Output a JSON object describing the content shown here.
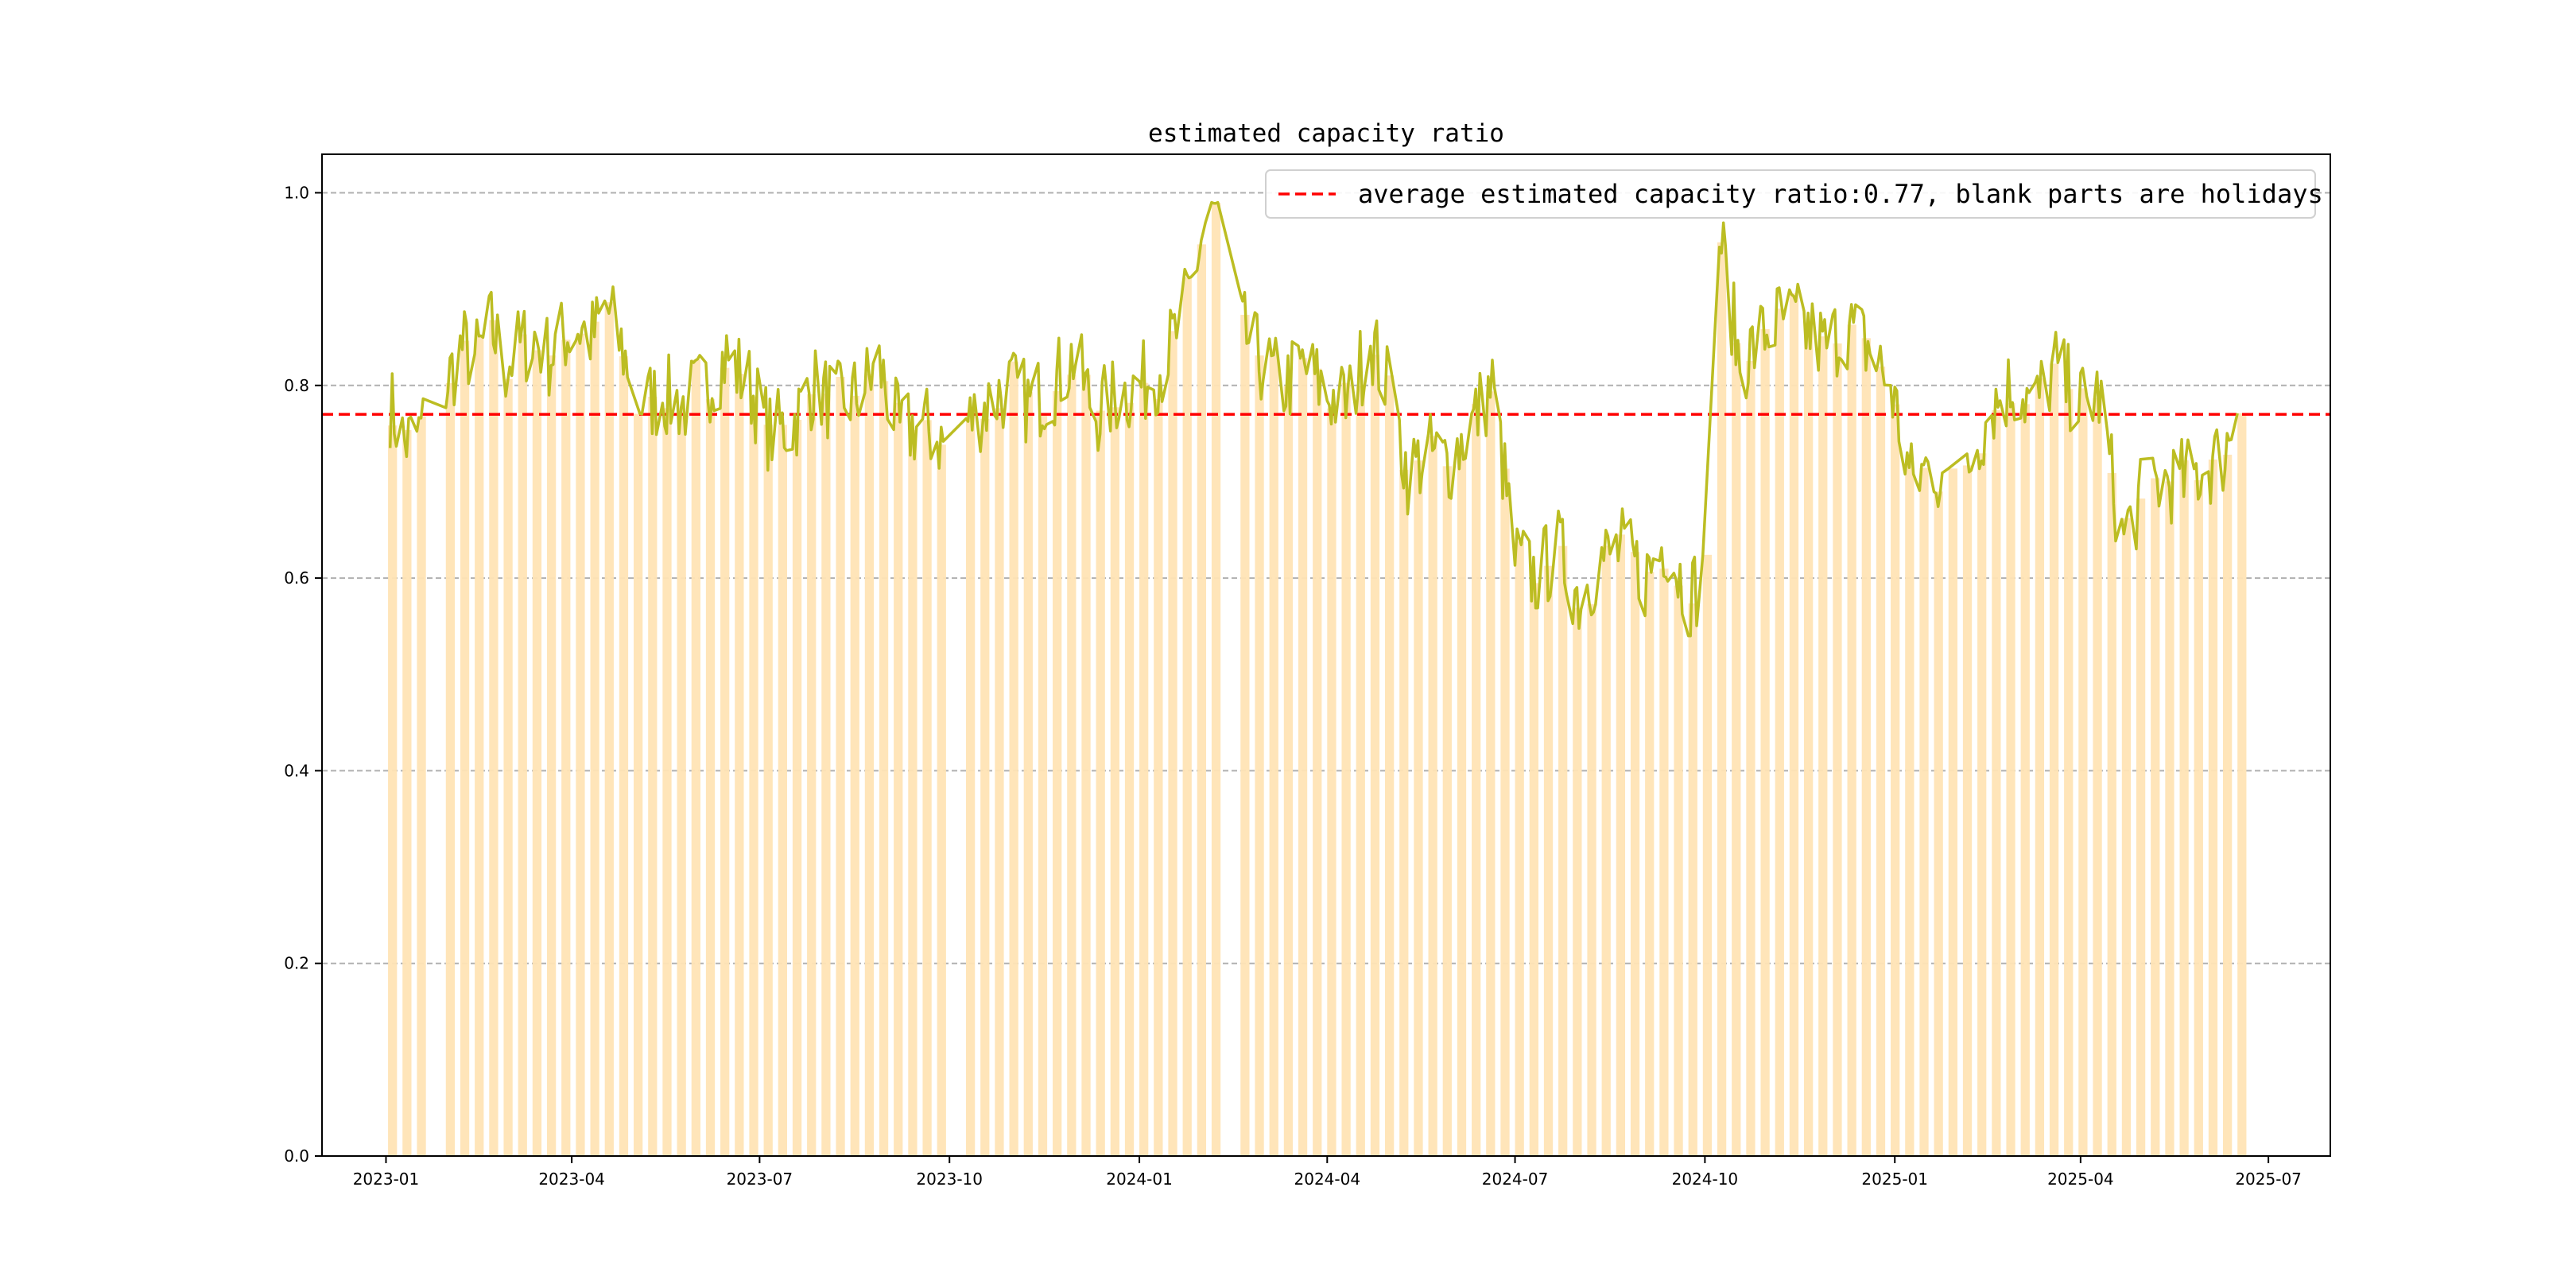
{
  "chart_data": {
    "type": "bar+line",
    "title": "estimated capacity ratio",
    "xlabel": "",
    "ylabel": "",
    "ylim": [
      0,
      1.04
    ],
    "xlim": [
      "2022-12-01",
      "2025-07-31"
    ],
    "grid": "y-dashed",
    "legend_placement": "top-right",
    "legend_entries": [
      "average estimated capacity ratio:0.77, blank parts are holidays"
    ],
    "average": 0.77,
    "x_ticks": [
      "2023-01",
      "2023-04",
      "2023-07",
      "2023-10",
      "2024-01",
      "2024-04",
      "2024-07",
      "2024-10",
      "2025-01",
      "2025-04",
      "2025-07"
    ],
    "y_ticks": [
      "0.0",
      "0.2",
      "0.4",
      "0.6",
      "0.8",
      "1.0"
    ],
    "holidays": [
      [
        "2023-01-20",
        "2023-01-28"
      ],
      [
        "2023-04-29",
        "2023-05-03"
      ],
      [
        "2023-09-29",
        "2023-10-06"
      ],
      [
        "2024-02-09",
        "2024-02-18"
      ],
      [
        "2024-05-01",
        "2024-05-05"
      ],
      [
        "2024-10-01",
        "2024-10-07"
      ],
      [
        "2025-01-28",
        "2025-02-04"
      ],
      [
        "2025-05-01",
        "2025-05-05"
      ]
    ],
    "series": [
      {
        "kind": "line",
        "color": "#bcbd22",
        "x": [
          "2023-01-03",
          "2023-01-10",
          "2023-01-17",
          "2023-01-30",
          "2023-02-07",
          "2023-02-14",
          "2023-02-21",
          "2023-02-28",
          "2023-03-07",
          "2023-03-14",
          "2023-03-21",
          "2023-03-28",
          "2023-04-04",
          "2023-04-11",
          "2023-04-18",
          "2023-04-25",
          "2023-05-05",
          "2023-05-15",
          "2023-05-25",
          "2023-06-05",
          "2023-06-15",
          "2023-06-26",
          "2023-07-06",
          "2023-07-17",
          "2023-07-27",
          "2023-08-07",
          "2023-08-17",
          "2023-08-28",
          "2023-09-07",
          "2023-09-18",
          "2023-09-28",
          "2023-10-09",
          "2023-10-19",
          "2023-10-30",
          "2023-11-09",
          "2023-11-20",
          "2023-11-30",
          "2023-12-11",
          "2023-12-21",
          "2024-01-02",
          "2024-01-12",
          "2024-01-22",
          "2024-02-01",
          "2024-02-08",
          "2024-02-19",
          "2024-03-01",
          "2024-03-11",
          "2024-03-21",
          "2024-04-01",
          "2024-04-11",
          "2024-04-22",
          "2024-04-30",
          "2024-05-10",
          "2024-05-20",
          "2024-05-30",
          "2024-06-10",
          "2024-06-20",
          "2024-07-01",
          "2024-07-11",
          "2024-07-22",
          "2024-08-01",
          "2024-08-12",
          "2024-08-22",
          "2024-09-02",
          "2024-09-12",
          "2024-09-23",
          "2024-09-30",
          "2024-10-08",
          "2024-10-18",
          "2024-10-28",
          "2024-11-07",
          "2024-11-18",
          "2024-11-28",
          "2024-12-09",
          "2024-12-19",
          "2024-12-30",
          "2025-01-09",
          "2025-01-20",
          "2025-01-27",
          "2025-02-06",
          "2025-02-17",
          "2025-02-27",
          "2025-03-10",
          "2025-03-20",
          "2025-03-31",
          "2025-04-10",
          "2025-04-21",
          "2025-04-30",
          "2025-05-09",
          "2025-05-19",
          "2025-05-29",
          "2025-06-10",
          "2025-06-16"
        ],
        "y": [
          0.78,
          0.74,
          0.75,
          0.8,
          0.84,
          0.83,
          0.86,
          0.82,
          0.84,
          0.85,
          0.83,
          0.85,
          0.86,
          0.85,
          0.88,
          0.84,
          0.78,
          0.79,
          0.78,
          0.8,
          0.83,
          0.8,
          0.75,
          0.76,
          0.8,
          0.78,
          0.79,
          0.82,
          0.75,
          0.76,
          0.74,
          0.76,
          0.78,
          0.8,
          0.78,
          0.8,
          0.83,
          0.77,
          0.79,
          0.8,
          0.82,
          0.87,
          0.96,
          0.98,
          0.86,
          0.82,
          0.8,
          0.82,
          0.79,
          0.78,
          0.85,
          0.8,
          0.71,
          0.73,
          0.72,
          0.76,
          0.8,
          0.62,
          0.6,
          0.63,
          0.58,
          0.62,
          0.63,
          0.6,
          0.64,
          0.58,
          0.6,
          0.96,
          0.82,
          0.85,
          0.87,
          0.86,
          0.84,
          0.86,
          0.84,
          0.8,
          0.7,
          0.72,
          0.68,
          0.72,
          0.78,
          0.8,
          0.78,
          0.82,
          0.78,
          0.79,
          0.64,
          0.68,
          0.7,
          0.7,
          0.71,
          0.73,
          0.79
        ]
      }
    ]
  }
}
